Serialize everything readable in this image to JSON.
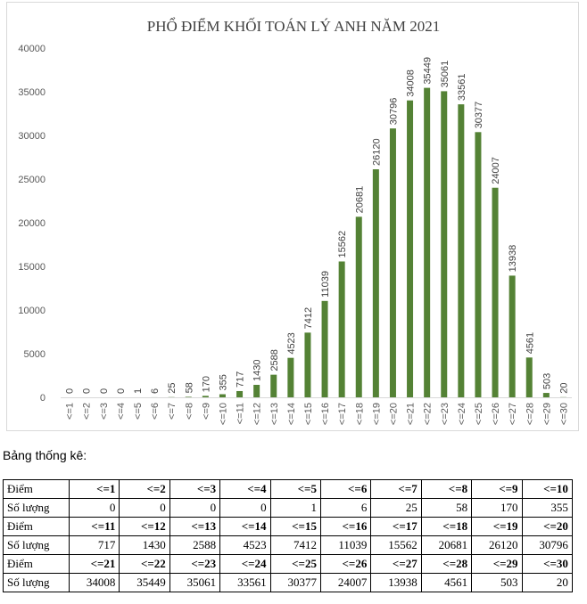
{
  "chart_data": {
    "type": "bar",
    "title": "PHỔ ĐIỂM KHỐI TOÁN LÝ ANH NĂM 2021",
    "categories": [
      "<=1",
      "<=2",
      "<=3",
      "<=4",
      "<=5",
      "<=6",
      "<=7",
      "<=8",
      "<=9",
      "<=10",
      "<=11",
      "<=12",
      "<=13",
      "<=14",
      "<=15",
      "<=16",
      "<=17",
      "<=18",
      "<=19",
      "<=20",
      "<=21",
      "<=22",
      "<=23",
      "<=24",
      "<=25",
      "<=26",
      "<=27",
      "<=28",
      "<=29",
      "<=30"
    ],
    "values": [
      0,
      0,
      0,
      0,
      1,
      6,
      25,
      58,
      170,
      355,
      717,
      1430,
      2588,
      4523,
      7412,
      11039,
      15562,
      20681,
      26120,
      30796,
      34008,
      35449,
      35061,
      33561,
      30377,
      24007,
      13938,
      4561,
      503,
      20
    ],
    "ylim": [
      0,
      40000
    ],
    "yticks": [
      0,
      5000,
      10000,
      15000,
      20000,
      25000,
      30000,
      35000,
      40000
    ],
    "xlabel": "",
    "ylabel": "",
    "bar_color": "#548235",
    "grid": false
  },
  "stats": {
    "caption": "Bảng thống kê:",
    "label_score": "Điểm",
    "label_count": "Số lượng"
  }
}
